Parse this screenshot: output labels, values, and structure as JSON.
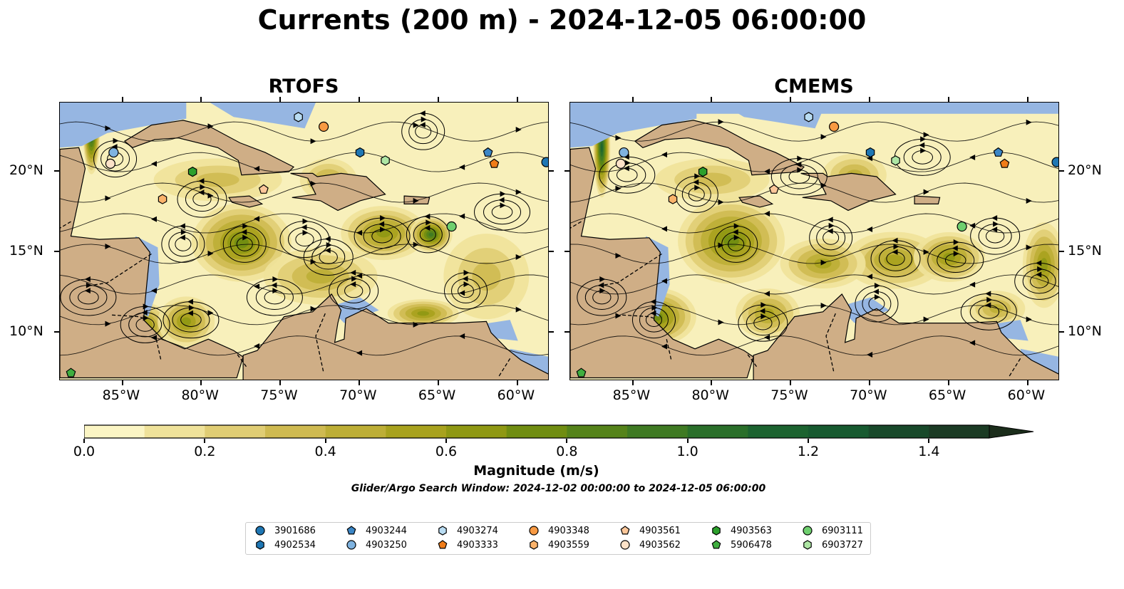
{
  "title": "Currents (200 m) - 2024-12-05 06:00:00",
  "panels": [
    {
      "title": "RTOFS"
    },
    {
      "title": "CMEMS"
    }
  ],
  "axes": {
    "x_ticks": [
      "85°W",
      "80°W",
      "75°W",
      "70°W",
      "65°W",
      "60°W"
    ],
    "y_ticks": [
      "20°N",
      "15°N",
      "10°N"
    ]
  },
  "colorbar": {
    "label": "Magnitude (m/s)",
    "ticks": [
      "0.0",
      "0.2",
      "0.4",
      "0.6",
      "0.8",
      "1.0",
      "1.2",
      "1.4"
    ],
    "range": [
      0,
      1.5
    ],
    "extend": "max",
    "colors": [
      "#fbf5c4",
      "#efe29a",
      "#e0cd74",
      "#cfba51",
      "#bdae36",
      "#a8a21e",
      "#8f9813",
      "#708d11",
      "#55831a",
      "#3f7a23",
      "#2a6f2a",
      "#1c6330",
      "#175a30",
      "#18492a",
      "#1b3b24",
      "#1b2d1b"
    ]
  },
  "search_window": "Glider/Argo Search Window: 2024-12-02 00:00:00 to 2024-12-05 06:00:00",
  "colors": {
    "ocean_fill": "#f8f0bb",
    "land": "#cfae86",
    "shallow_water": "#96b6e2",
    "streamline": "#000000"
  },
  "legend": [
    {
      "id": "3901686",
      "marker": "circle",
      "color": "#1f77b4"
    },
    {
      "id": "4902534",
      "marker": "hexagon",
      "color": "#1f77b4"
    },
    {
      "id": "4903244",
      "marker": "pentagon",
      "color": "#3b86c6"
    },
    {
      "id": "4903250",
      "marker": "circle",
      "color": "#7fb3e0"
    },
    {
      "id": "4903274",
      "marker": "hexagon",
      "color": "#b9dcf2"
    },
    {
      "id": "4903333",
      "marker": "pentagon",
      "color": "#f07c18"
    },
    {
      "id": "4903348",
      "marker": "circle",
      "color": "#f89a43"
    },
    {
      "id": "4903559",
      "marker": "hexagon",
      "color": "#fbb36b"
    },
    {
      "id": "4903561",
      "marker": "pentagon",
      "color": "#fcc79a"
    },
    {
      "id": "4903562",
      "marker": "circle",
      "color": "#fde2c8"
    },
    {
      "id": "4903563",
      "marker": "hexagon",
      "color": "#2ca02c"
    },
    {
      "id": "5906478",
      "marker": "pentagon",
      "color": "#3fae3f"
    },
    {
      "id": "6903111",
      "marker": "circle",
      "color": "#6fcf6f"
    },
    {
      "id": "6903727",
      "marker": "hexagon",
      "color": "#aee6a4"
    }
  ],
  "floats": [
    {
      "id": "3901686",
      "lon": -58.2,
      "lat": 20.6
    },
    {
      "id": "4902534",
      "lon": -70.0,
      "lat": 21.2
    },
    {
      "id": "4903244",
      "lon": -61.9,
      "lat": 21.2
    },
    {
      "id": "4903250",
      "lon": -85.6,
      "lat": 21.2
    },
    {
      "id": "4903274",
      "lon": -73.9,
      "lat": 23.4
    },
    {
      "id": "4903333",
      "lon": -61.5,
      "lat": 20.5
    },
    {
      "id": "4903348",
      "lon": -72.3,
      "lat": 22.8
    },
    {
      "id": "4903559",
      "lon": -82.5,
      "lat": 18.3
    },
    {
      "id": "4903561",
      "lon": -76.1,
      "lat": 18.9
    },
    {
      "id": "4903562",
      "lon": -85.8,
      "lat": 20.5
    },
    {
      "id": "4903563",
      "lon": -80.6,
      "lat": 20.0
    },
    {
      "id": "5906478",
      "lon": -88.3,
      "lat": 7.5
    },
    {
      "id": "6903111",
      "lon": -64.2,
      "lat": 16.6
    },
    {
      "id": "6903727",
      "lon": -68.4,
      "lat": 20.7
    }
  ]
}
